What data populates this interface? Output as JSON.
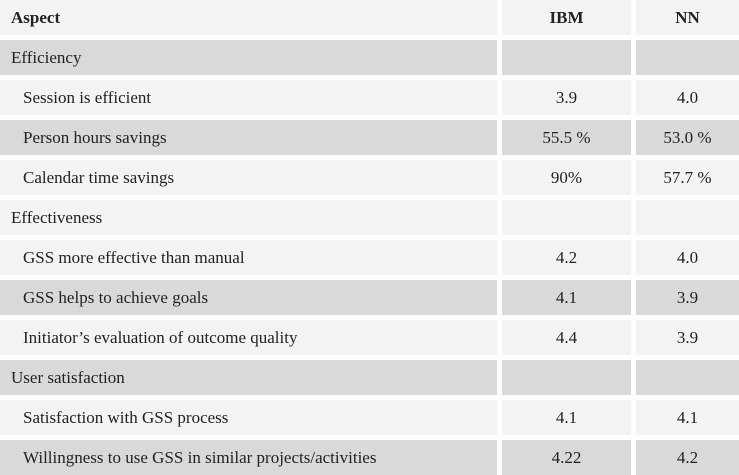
{
  "table": {
    "headers": [
      "Aspect",
      "IBM",
      "NN"
    ],
    "rows": [
      {
        "type": "section",
        "label": "Efficiency",
        "ibm": "",
        "nn": "",
        "shade": "gray"
      },
      {
        "type": "item",
        "label": "Session is efficient",
        "ibm": "3.9",
        "nn": "4.0",
        "shade": "white"
      },
      {
        "type": "item",
        "label": "Person hours savings",
        "ibm": "55.5 %",
        "nn": "53.0 %",
        "shade": "gray"
      },
      {
        "type": "item",
        "label": "Calendar time savings",
        "ibm": "90%",
        "nn": "57.7 %",
        "shade": "white"
      },
      {
        "type": "section",
        "label": "Effectiveness",
        "ibm": "",
        "nn": "",
        "shade": "white"
      },
      {
        "type": "item",
        "label": "GSS more effective than manual",
        "ibm": "4.2",
        "nn": "4.0",
        "shade": "white"
      },
      {
        "type": "item",
        "label": "GSS helps to achieve goals",
        "ibm": "4.1",
        "nn": "3.9",
        "shade": "gray"
      },
      {
        "type": "item",
        "label": "Initiator’s evaluation of outcome quality",
        "ibm": "4.4",
        "nn": "3.9",
        "shade": "white"
      },
      {
        "type": "section",
        "label": "User satisfaction",
        "ibm": "",
        "nn": "",
        "shade": "gray"
      },
      {
        "type": "item",
        "label": "Satisfaction with GSS process",
        "ibm": "4.1",
        "nn": "4.1",
        "shade": "white"
      },
      {
        "type": "item",
        "label": "Willingness to use GSS in similar projects/activities",
        "ibm": "4.22",
        "nn": "4.2",
        "shade": "gray"
      }
    ]
  },
  "colors": {
    "shade_gray": "#d9d9d9",
    "shade_light": "#f3f3f3"
  }
}
